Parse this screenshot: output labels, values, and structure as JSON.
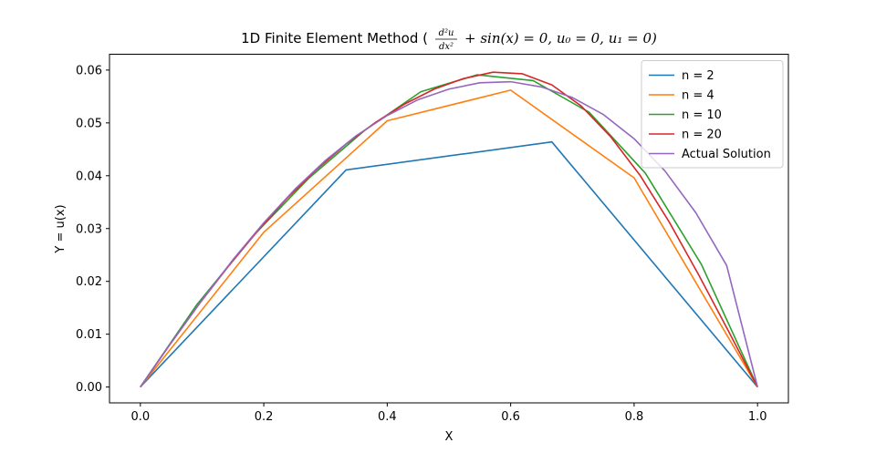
{
  "chart_data": {
    "type": "line",
    "title_text": "1D Finite Element Method (",
    "title_equation": {
      "fraction_numerator": "d²u",
      "fraction_denominator": "dx²",
      "rest": "+ sin(x) = 0, u₀ = 0, u₁ = 0)"
    },
    "xlabel": "X",
    "ylabel": "Y = u(x)",
    "xlim": [
      -0.05,
      1.05
    ],
    "ylim": [
      -0.003,
      0.063
    ],
    "xticks": [
      "0.0",
      "0.2",
      "0.4",
      "0.6",
      "0.8",
      "1.0"
    ],
    "yticks": [
      "0.00",
      "0.01",
      "0.02",
      "0.03",
      "0.04",
      "0.05",
      "0.06"
    ],
    "grid": false,
    "legend_location": "upper right",
    "series": [
      {
        "name": "n = 2",
        "color": "#1f77b4",
        "x": [
          0.0,
          0.3333,
          0.6667,
          1.0
        ],
        "y": [
          0.0,
          0.0411,
          0.0464,
          0.0
        ]
      },
      {
        "name": "n = 4",
        "color": "#ff7f0e",
        "x": [
          0.0,
          0.2,
          0.4,
          0.6,
          0.8,
          1.0
        ],
        "y": [
          0.0,
          0.0293,
          0.0504,
          0.0562,
          0.0396,
          0.0
        ]
      },
      {
        "name": "n = 10",
        "color": "#2ca02c",
        "x": [
          0.0,
          0.0909,
          0.1818,
          0.2727,
          0.3636,
          0.4545,
          0.5455,
          0.6364,
          0.7273,
          0.8182,
          0.9091,
          1.0
        ],
        "y": [
          0.0,
          0.0155,
          0.0285,
          0.0395,
          0.0486,
          0.0559,
          0.0591,
          0.058,
          0.052,
          0.0405,
          0.0232,
          0.0
        ]
      },
      {
        "name": "n = 20",
        "color": "#d62728",
        "x": [
          0.0,
          0.0476,
          0.0952,
          0.1429,
          0.1905,
          0.2381,
          0.2857,
          0.3333,
          0.381,
          0.4286,
          0.4762,
          0.5238,
          0.5714,
          0.619,
          0.6667,
          0.7143,
          0.7619,
          0.8095,
          0.8571,
          0.9048,
          0.9524,
          1.0
        ],
        "y": [
          0.0,
          0.008,
          0.0157,
          0.0229,
          0.0296,
          0.0358,
          0.0412,
          0.046,
          0.0501,
          0.0536,
          0.0564,
          0.0584,
          0.0596,
          0.0593,
          0.0572,
          0.0532,
          0.0474,
          0.0401,
          0.0312,
          0.0212,
          0.0107,
          0.0
        ]
      },
      {
        "name": "Actual Solution",
        "color": "#9467bd",
        "x": [
          0.0,
          0.05,
          0.1,
          0.15,
          0.2,
          0.25,
          0.3,
          0.35,
          0.4,
          0.45,
          0.5,
          0.55,
          0.6,
          0.65,
          0.7,
          0.75,
          0.8,
          0.85,
          0.9,
          0.95,
          1.0
        ],
        "y": [
          0.0,
          0.0084,
          0.0165,
          0.0241,
          0.0311,
          0.0374,
          0.0429,
          0.0476,
          0.0514,
          0.0544,
          0.0564,
          0.0576,
          0.0578,
          0.0568,
          0.0548,
          0.0516,
          0.047,
          0.0409,
          0.033,
          0.023,
          0.0
        ]
      }
    ]
  }
}
